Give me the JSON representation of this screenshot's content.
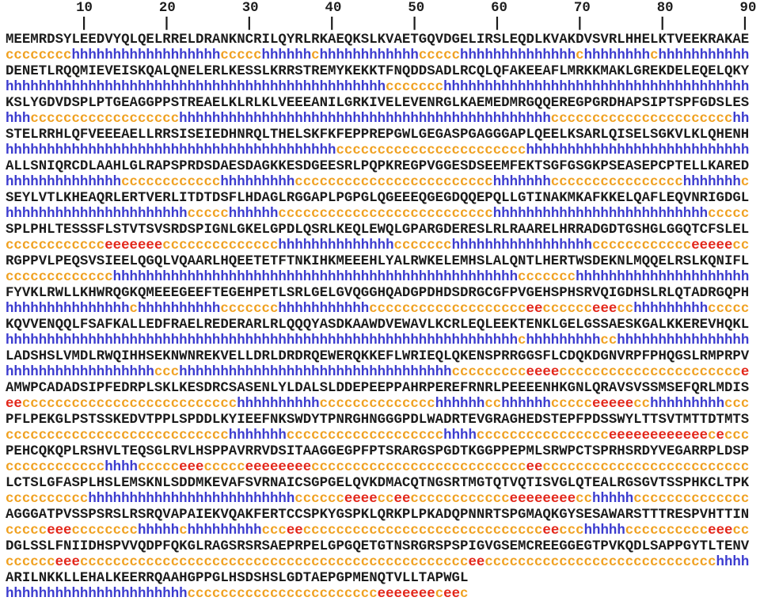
{
  "ruler": {
    "numbers": [
      10,
      20,
      30,
      40,
      50,
      60,
      70,
      80,
      90
    ],
    "interval": 10,
    "columns": 90,
    "tick_char": "|"
  },
  "colors": {
    "sequence": "#1c1c1c",
    "ruler": "#1c1c1c",
    "h": "#3c3ccf",
    "c": "#f0a121",
    "e": "#e32619",
    "background": "#ffffff"
  },
  "blocks": [
    {
      "seq": "MEEMRDSYLEEDVYQLQELRRELDRANKNCRILQYRLRKAEQKSLKVAETGQVDGELIRSLEQDLKVAKDVSVRLHHELKTVEEKRAKAE",
      "ss": [
        [
          "c",
          8
        ],
        [
          "h",
          18
        ],
        [
          "c",
          5
        ],
        [
          "h",
          6
        ],
        [
          "c",
          1
        ],
        [
          "h",
          12
        ],
        [
          "c",
          5
        ],
        [
          "h",
          14
        ],
        [
          "c",
          1
        ],
        [
          "h",
          8
        ],
        [
          "c",
          1
        ],
        [
          "h",
          11
        ]
      ]
    },
    {
      "seq": "DENETLRQQMIEVEISKQALQNELERLKESSLKRRSTREMYKEKKTFNQDDSADLRCQLQFAKEEAFLMRKKMAKLGREKDELEQELQKY",
      "ss": [
        [
          "h",
          46
        ],
        [
          "c",
          7
        ],
        [
          "h",
          37
        ]
      ]
    },
    {
      "seq": "KSLYGDVDSPLPTGEAGGPPSTREAELKLRLKLVEEEANILGRKIVELEVENRGLKAEMEDMRGQQEREGPGRDHAPSIPTSPFGDSLES",
      "ss": [
        [
          "h",
          3
        ],
        [
          "c",
          18
        ],
        [
          "h",
          45
        ],
        [
          "c",
          22
        ],
        [
          "h",
          2
        ]
      ]
    },
    {
      "seq": "STELRRHLQFVEEEAELLRRSISEIEDHNRQLTHELSKFKFEPPREPGWLGEGASPGAGGGAPLQEELKSARLQISELSGKVLKLQHENH",
      "ss": [
        [
          "h",
          40
        ],
        [
          "c",
          23
        ],
        [
          "h",
          27
        ]
      ]
    },
    {
      "seq": "ALLSNIQRCDLAAHLGLRAPSPRDSDAESDAGKKESDGEESRLPQPKREGPVGGESDSEEMFEKTSGFGSGKPSEASEPCPTELLKARED",
      "ss": [
        [
          "h",
          14
        ],
        [
          "c",
          12
        ],
        [
          "h",
          9
        ],
        [
          "c",
          24
        ],
        [
          "h",
          7
        ],
        [
          "c",
          16
        ],
        [
          "h",
          7
        ],
        [
          "c",
          1
        ]
      ]
    },
    {
      "seq": "SEYLVTLKHEAQRLERTVERLITDTDSFLHDAGLRGGAPLPGPGLQGEEEQGEGDQQEPQLLGTINAKMKAFKKELQAFLEQVNRIGDGL",
      "ss": [
        [
          "h",
          22
        ],
        [
          "c",
          5
        ],
        [
          "h",
          6
        ],
        [
          "c",
          26
        ],
        [
          "h",
          26
        ],
        [
          "c",
          5
        ]
      ]
    },
    {
      "seq": "SPLPHLTESSSFLSTVTSVSRDSPIGNLGKELGPDLQSRLKEQLEWQLGPARGDERESLRLRAARELHRRADGDTGSHGLGGQTCFSLEL",
      "ss": [
        [
          "c",
          12
        ],
        [
          "e",
          7
        ],
        [
          "c",
          14
        ],
        [
          "h",
          14
        ],
        [
          "c",
          7
        ],
        [
          "h",
          17
        ],
        [
          "c",
          12
        ],
        [
          "e",
          5
        ],
        [
          "c",
          2
        ]
      ]
    },
    {
      "seq": "RGPPVLPEQSVSIEELQGQLVQAARLHQEETETFTNKIHKMEEEHLYALRWKELEMHSLALQNTLHERTWSDEKNLMQQELRSLKQNIFL",
      "ss": [
        [
          "c",
          13
        ],
        [
          "h",
          49
        ],
        [
          "c",
          7
        ],
        [
          "h",
          21
        ]
      ]
    },
    {
      "seq": "FYVKLRWLLKHWRQGKQMEEEGEEFTEGEHPETLSRLGELGVQGGHQADGPDHDSDRGCGFPVGEHSPHSRVQIGDHSLRLQTADRGQPH",
      "ss": [
        [
          "h",
          15
        ],
        [
          "c",
          1
        ],
        [
          "h",
          10
        ],
        [
          "c",
          7
        ],
        [
          "h",
          11
        ],
        [
          "c",
          19
        ],
        [
          "e",
          2
        ],
        [
          "c",
          6
        ],
        [
          "e",
          3
        ],
        [
          "c",
          2
        ],
        [
          "h",
          9
        ],
        [
          "c",
          5
        ]
      ]
    },
    {
      "seq": "KQVVENQQLFSAFKALLEDFRAELREDERARLRLQQQYASDKAAWDVEWAVLKCRLEQLEEKTENKLGELGSSAESKGALKKEREVHQKL",
      "ss": [
        [
          "h",
          62
        ],
        [
          "c",
          1
        ],
        [
          "h",
          9
        ],
        [
          "c",
          2
        ],
        [
          "h",
          16
        ]
      ]
    },
    {
      "seq": "LADSHSLVMDLRWQIHHSEKNWNREKVELLDRLDRDRQEWERQKKEFLWRIEQLQKENSPRRGGSFLCDQKDGNVRPFPHQGSLRMPRPV",
      "ss": [
        [
          "h",
          18
        ],
        [
          "c",
          3
        ],
        [
          "h",
          33
        ],
        [
          "c",
          9
        ],
        [
          "e",
          4
        ],
        [
          "c",
          22
        ],
        [
          "e",
          1
        ]
      ]
    },
    {
      "seq": "AMWPCADADSIPFEDRPLSKLKESDRCSASENLYLDALSLDDEPEEPPAHRPEREFRNRLPEEEENHKGNLQRAVSVSSMSEFQRLMDIS",
      "ss": [
        [
          "e",
          2
        ],
        [
          "c",
          26
        ],
        [
          "h",
          10
        ],
        [
          "c",
          14
        ],
        [
          "h",
          6
        ],
        [
          "c",
          2
        ],
        [
          "h",
          6
        ],
        [
          "c",
          5
        ],
        [
          "e",
          5
        ],
        [
          "c",
          2
        ],
        [
          "h",
          9
        ],
        [
          "c",
          3
        ]
      ]
    },
    {
      "seq": "PFLPEKGLPSTSSKEDVTPPLSPDDLKYIEEFNKSWDYTPNRGHNGGGPDLWADRTEVGRAGHEDSTEPFPDSSWYLTTSVTMTTDTMTS",
      "ss": [
        [
          "c",
          27
        ],
        [
          "h",
          7
        ],
        [
          "c",
          19
        ],
        [
          "h",
          4
        ],
        [
          "c",
          16
        ],
        [
          "e",
          12
        ],
        [
          "c",
          1
        ],
        [
          "e",
          1
        ],
        [
          "c",
          3
        ]
      ]
    },
    {
      "seq": "PEHCQKQPLRSHVLTEQSGLRVLHSPPAVRRVDSITAAGGEGPFPTSRARGSPGDTKGGPPEPMLSRWPCTSPRHSRDYVEGARRPLDSP",
      "ss": [
        [
          "c",
          12
        ],
        [
          "h",
          4
        ],
        [
          "c",
          5
        ],
        [
          "e",
          3
        ],
        [
          "c",
          5
        ],
        [
          "e",
          8
        ],
        [
          "c",
          26
        ],
        [
          "e",
          2
        ],
        [
          "c",
          25
        ]
      ]
    },
    {
      "seq": "LCTSLGFASPLHSLEMSKNLSDDMKEVAFSVRNAICSGPGELQVKDMACQTNGSRTMGTQTVQTISVGLQTEALRGSGVTSSPHKCLTPK",
      "ss": [
        [
          "c",
          10
        ],
        [
          "h",
          25
        ],
        [
          "c",
          6
        ],
        [
          "e",
          4
        ],
        [
          "c",
          2
        ],
        [
          "e",
          2
        ],
        [
          "c",
          12
        ],
        [
          "e",
          8
        ],
        [
          "c",
          2
        ],
        [
          "h",
          5
        ],
        [
          "c",
          14
        ]
      ]
    },
    {
      "seq": "AGGGATPVSSPSRSLRSRQVAPAIEKVQAKFERTCCSPKYGSPKLQRKPLPKADQPNNRTSPGMAQKGYSESAWARSTTTRESPVHTTIN",
      "ss": [
        [
          "c",
          5
        ],
        [
          "e",
          3
        ],
        [
          "c",
          8
        ],
        [
          "h",
          5
        ],
        [
          "c",
          1
        ],
        [
          "h",
          9
        ],
        [
          "c",
          3
        ],
        [
          "e",
          2
        ],
        [
          "c",
          29
        ],
        [
          "e",
          2
        ],
        [
          "c",
          3
        ],
        [
          "h",
          5
        ],
        [
          "c",
          10
        ],
        [
          "e",
          3
        ],
        [
          "c",
          2
        ]
      ]
    },
    {
      "seq": "DGLSSLFNIIDHSPVVQDPFQKGLRAGSRSRSAEPRPELGPGQETGTNSRGRSPSPIGVGSEMCREEGGEGTPVKQDLSAPPGYTLTENV",
      "ss": [
        [
          "c",
          6
        ],
        [
          "e",
          3
        ],
        [
          "c",
          47
        ],
        [
          "e",
          2
        ],
        [
          "c",
          28
        ],
        [
          "h",
          4
        ]
      ]
    },
    {
      "seq": "ARILNKKLLEHALKEERRQAAHGPPGLHSDSHSLGDTAEPGPMENQTVLLTAPWGL",
      "ss": [
        [
          "h",
          22
        ],
        [
          "c",
          23
        ],
        [
          "e",
          7
        ],
        [
          "c",
          1
        ],
        [
          "e",
          2
        ],
        [
          "c",
          1
        ]
      ]
    }
  ]
}
